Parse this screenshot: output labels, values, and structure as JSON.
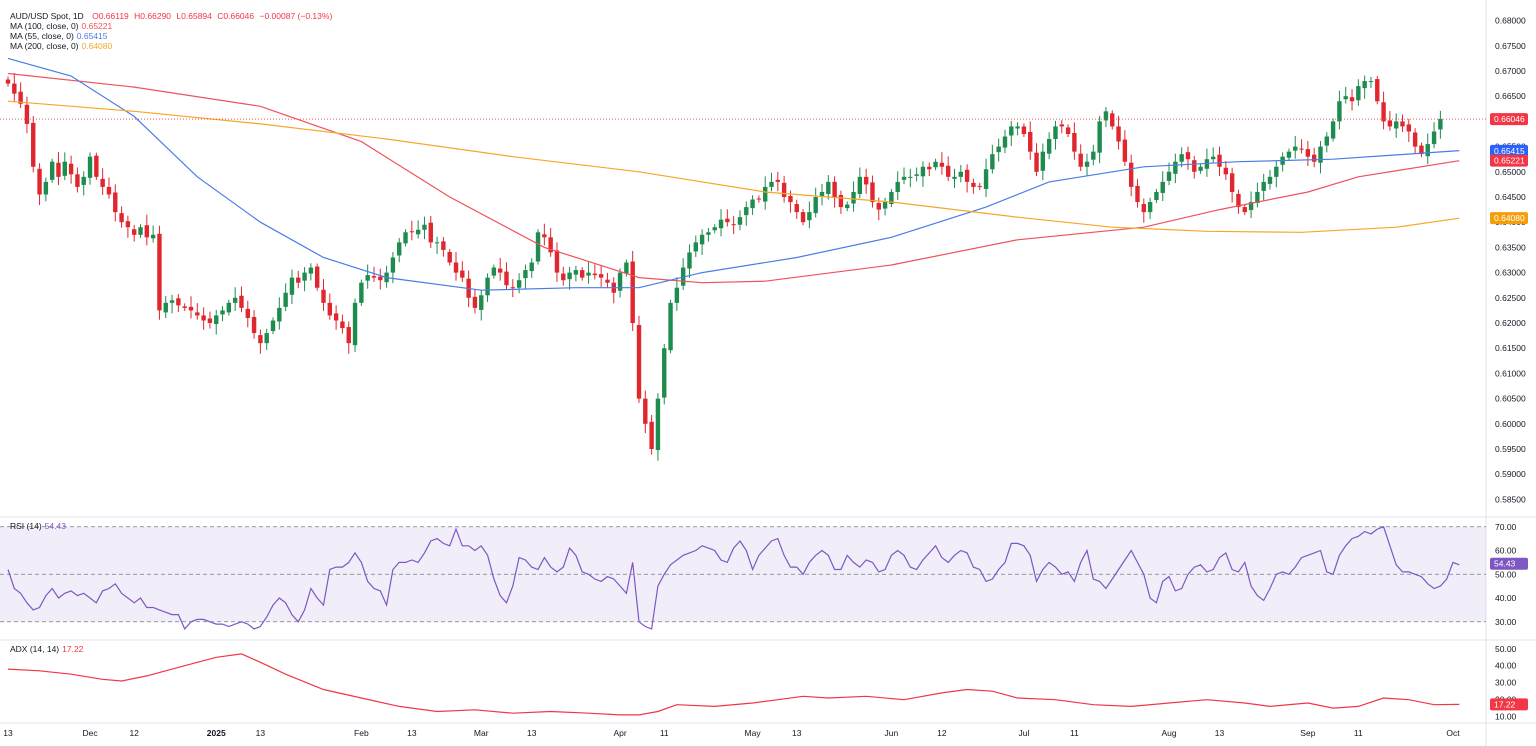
{
  "chart_data": {
    "type": "candlestick",
    "title": "AUD/USD Spot, 1D",
    "ohlc_label": {
      "open": "O0.66119",
      "high": "H0.66290",
      "low": "L0.65894",
      "close": "C0.66046",
      "change": "−0.00087 (−0.13%)"
    },
    "ylim": [
      0.5825,
      0.6825
    ],
    "y_ticks": [
      "0.68000",
      "0.67500",
      "0.67000",
      "0.66500",
      "0.66000",
      "0.65500",
      "0.65000",
      "0.64500",
      "0.64000",
      "0.63500",
      "0.63000",
      "0.62500",
      "0.62000",
      "0.61500",
      "0.61000",
      "0.60500",
      "0.60000",
      "0.59500",
      "0.59000",
      "0.58500"
    ],
    "x_ticks": [
      {
        "label": "13",
        "i": 0
      },
      {
        "label": "Dec",
        "i": 13
      },
      {
        "label": "12",
        "i": 20
      },
      {
        "label": "2025",
        "i": 33,
        "bold": true
      },
      {
        "label": "13",
        "i": 40
      },
      {
        "label": "Feb",
        "i": 56
      },
      {
        "label": "13",
        "i": 64
      },
      {
        "label": "Mar",
        "i": 75
      },
      {
        "label": "13",
        "i": 83
      },
      {
        "label": "Apr",
        "i": 97
      },
      {
        "label": "11",
        "i": 104
      },
      {
        "label": "May",
        "i": 118
      },
      {
        "label": "13",
        "i": 125
      },
      {
        "label": "Jun",
        "i": 140
      },
      {
        "label": "12",
        "i": 148
      },
      {
        "label": "Jul",
        "i": 161
      },
      {
        "label": "11",
        "i": 169
      },
      {
        "label": "Aug",
        "i": 184
      },
      {
        "label": "13",
        "i": 192
      },
      {
        "label": "Sep",
        "i": 206
      },
      {
        "label": "11",
        "i": 214
      },
      {
        "label": "Oct",
        "i": 229
      }
    ],
    "close_path": [
      0.6675,
      0.6655,
      0.6635,
      0.6595,
      0.651,
      0.6455,
      0.648,
      0.652,
      0.649,
      0.652,
      0.6495,
      0.647,
      0.649,
      0.653,
      0.649,
      0.647,
      0.6455,
      0.642,
      0.64,
      0.639,
      0.6375,
      0.639,
      0.637,
      0.6375,
      0.6225,
      0.624,
      0.6245,
      0.6235,
      0.623,
      0.6225,
      0.6215,
      0.6205,
      0.62,
      0.6215,
      0.6225,
      0.624,
      0.625,
      0.623,
      0.621,
      0.618,
      0.616,
      0.618,
      0.6205,
      0.623,
      0.626,
      0.629,
      0.628,
      0.63,
      0.631,
      0.627,
      0.624,
      0.6215,
      0.6205,
      0.619,
      0.616,
      0.624,
      0.628,
      0.6295,
      0.629,
      0.6285,
      0.63,
      0.633,
      0.636,
      0.638,
      0.638,
      0.6385,
      0.6395,
      0.636,
      0.636,
      0.6345,
      0.632,
      0.63,
      0.629,
      0.625,
      0.623,
      0.6255,
      0.629,
      0.631,
      0.63,
      0.6275,
      0.627,
      0.6285,
      0.6305,
      0.632,
      0.638,
      0.637,
      0.634,
      0.63,
      0.6285,
      0.63,
      0.6305,
      0.629,
      0.63,
      0.6295,
      0.629,
      0.628,
      0.626,
      0.63,
      0.632,
      0.62,
      0.605,
      0.6,
      0.595,
      0.605,
      0.615,
      0.624,
      0.627,
      0.631,
      0.634,
      0.636,
      0.6375,
      0.638,
      0.639,
      0.6405,
      0.64,
      0.6395,
      0.641,
      0.643,
      0.6445,
      0.6445,
      0.647,
      0.648,
      0.648,
      0.645,
      0.644,
      0.642,
      0.64,
      0.642,
      0.645,
      0.646,
      0.648,
      0.645,
      0.643,
      0.6435,
      0.646,
      0.649,
      0.6475,
      0.644,
      0.6425,
      0.644,
      0.646,
      0.648,
      0.649,
      0.649,
      0.6495,
      0.651,
      0.6505,
      0.652,
      0.651,
      0.649,
      0.649,
      0.65,
      0.648,
      0.647,
      0.647,
      0.6505,
      0.6535,
      0.655,
      0.657,
      0.659,
      0.659,
      0.6575,
      0.654,
      0.65,
      0.654,
      0.6565,
      0.659,
      0.659,
      0.6575,
      0.654,
      0.651,
      0.652,
      0.654,
      0.66,
      0.662,
      0.659,
      0.656,
      0.652,
      0.647,
      0.644,
      0.642,
      0.644,
      0.646,
      0.648,
      0.65,
      0.652,
      0.6535,
      0.6525,
      0.65,
      0.651,
      0.6525,
      0.653,
      0.651,
      0.6495,
      0.646,
      0.643,
      0.642,
      0.644,
      0.646,
      0.648,
      0.649,
      0.651,
      0.653,
      0.654,
      0.655,
      0.6545,
      0.653,
      0.652,
      0.655,
      0.657,
      0.66,
      0.664,
      0.665,
      0.664,
      0.667,
      0.668,
      0.668,
      0.664,
      0.66,
      0.659,
      0.66,
      0.659,
      0.658,
      0.655,
      0.6535,
      0.6555,
      0.658,
      0.6605
    ],
    "ma_series": [
      {
        "name": "MA (100, close, 0)",
        "value": "0.65221",
        "color": "#F0525B",
        "path": [
          [
            0,
            0.6695
          ],
          [
            20,
            0.6668
          ],
          [
            40,
            0.663
          ],
          [
            56,
            0.656
          ],
          [
            70,
            0.645
          ],
          [
            85,
            0.635
          ],
          [
            100,
            0.629
          ],
          [
            110,
            0.628
          ],
          [
            120,
            0.6283
          ],
          [
            140,
            0.6315
          ],
          [
            160,
            0.6365
          ],
          [
            180,
            0.639
          ],
          [
            192,
            0.6425
          ],
          [
            206,
            0.646
          ],
          [
            214,
            0.649
          ],
          [
            230,
            0.6522
          ]
        ]
      },
      {
        "name": "MA (55, close, 0)",
        "value": "0.65415",
        "color": "#4A7CE8",
        "path": [
          [
            0,
            0.6725
          ],
          [
            10,
            0.669
          ],
          [
            20,
            0.661
          ],
          [
            30,
            0.649
          ],
          [
            40,
            0.64
          ],
          [
            50,
            0.633
          ],
          [
            60,
            0.629
          ],
          [
            75,
            0.6265
          ],
          [
            90,
            0.627
          ],
          [
            100,
            0.627
          ],
          [
            110,
            0.63
          ],
          [
            125,
            0.633
          ],
          [
            140,
            0.637
          ],
          [
            155,
            0.643
          ],
          [
            165,
            0.648
          ],
          [
            180,
            0.651
          ],
          [
            195,
            0.652
          ],
          [
            210,
            0.6525
          ],
          [
            230,
            0.6542
          ]
        ]
      },
      {
        "name": "MA (200, close, 0)",
        "value": "0.64080",
        "color": "#F6A72A",
        "path": [
          [
            0,
            0.664
          ],
          [
            20,
            0.662
          ],
          [
            40,
            0.6595
          ],
          [
            60,
            0.6565
          ],
          [
            80,
            0.653
          ],
          [
            100,
            0.65
          ],
          [
            120,
            0.646
          ],
          [
            140,
            0.644
          ],
          [
            160,
            0.641
          ],
          [
            175,
            0.639
          ],
          [
            190,
            0.6382
          ],
          [
            205,
            0.638
          ],
          [
            220,
            0.639
          ],
          [
            230,
            0.6408
          ]
        ]
      }
    ],
    "last_price": "0.66046",
    "rsi": {
      "label": "RSI (14)",
      "value": "54.43",
      "color": "#7E57C2",
      "ylim": [
        24,
        72
      ],
      "bands": [
        30,
        70
      ],
      "mid": 50,
      "y_ticks": [
        "70.00",
        "60.00",
        "50.00",
        "40.00",
        "30.00"
      ],
      "path": [
        52,
        44,
        42,
        38,
        35,
        36,
        41,
        44,
        40,
        42,
        43,
        41,
        42,
        40,
        38,
        43,
        44,
        46,
        42,
        40,
        38,
        40,
        36,
        36,
        35,
        34,
        33,
        33,
        27,
        30,
        31,
        31,
        30,
        29,
        29,
        28,
        29,
        30,
        29,
        27,
        28,
        32,
        37,
        40,
        38,
        33,
        30,
        35,
        44,
        40,
        37,
        52,
        53,
        53,
        55,
        59,
        55,
        47,
        44,
        43,
        37,
        52,
        55,
        55,
        56,
        55,
        59,
        64,
        65,
        63,
        62,
        69,
        62,
        62,
        60,
        62,
        58,
        48,
        41,
        38,
        45,
        57,
        56,
        53,
        52,
        57,
        53,
        51,
        53,
        61,
        58,
        51,
        50,
        48,
        47,
        49,
        48,
        45,
        42,
        55,
        30,
        28,
        27,
        45,
        50,
        54,
        56,
        58,
        59,
        60,
        62,
        61,
        60,
        56,
        55,
        61,
        64,
        60,
        52,
        58,
        61,
        64,
        65,
        58,
        53,
        53,
        50,
        55,
        58,
        60,
        58,
        52,
        52,
        58,
        55,
        53,
        56,
        55,
        51,
        52,
        58,
        60,
        58,
        53,
        52,
        56,
        59,
        62,
        57,
        55,
        58,
        60,
        59,
        53,
        52,
        47,
        48,
        52,
        55,
        63,
        63,
        62,
        58,
        47,
        52,
        55,
        53,
        50,
        51,
        47,
        55,
        60,
        48,
        47,
        44,
        48,
        52,
        56,
        60,
        55,
        50,
        40,
        38,
        47,
        49,
        43,
        44,
        50,
        53,
        54,
        51,
        52,
        57,
        59,
        52,
        51,
        55,
        45,
        41,
        39,
        44,
        50,
        51,
        50,
        53,
        57,
        58,
        59,
        60,
        51,
        50,
        58,
        62,
        65,
        66,
        68,
        67,
        69,
        70,
        62,
        54,
        51,
        51,
        50,
        49,
        46,
        44,
        45,
        48,
        55,
        54
      ]
    },
    "adx": {
      "label": "ADX (14, 14)",
      "value": "17.22",
      "color": "#F23645",
      "ylim": [
        8,
        54
      ],
      "y_ticks": [
        "50.00",
        "40.00",
        "30.00",
        "20.00",
        "10.00"
      ],
      "path": [
        [
          0,
          38
        ],
        [
          5,
          37
        ],
        [
          10,
          35
        ],
        [
          15,
          32
        ],
        [
          18,
          31
        ],
        [
          22,
          34
        ],
        [
          28,
          40
        ],
        [
          33,
          45
        ],
        [
          37,
          47
        ],
        [
          40,
          42
        ],
        [
          44,
          35
        ],
        [
          50,
          26
        ],
        [
          56,
          21
        ],
        [
          62,
          16
        ],
        [
          68,
          13
        ],
        [
          74,
          14
        ],
        [
          80,
          12
        ],
        [
          86,
          13
        ],
        [
          92,
          12
        ],
        [
          97,
          11
        ],
        [
          100,
          11
        ],
        [
          103,
          13
        ],
        [
          106,
          17
        ],
        [
          112,
          16
        ],
        [
          118,
          18
        ],
        [
          122,
          20
        ],
        [
          126,
          22
        ],
        [
          130,
          21
        ],
        [
          136,
          22
        ],
        [
          142,
          20
        ],
        [
          148,
          24
        ],
        [
          152,
          26
        ],
        [
          156,
          25
        ],
        [
          160,
          21
        ],
        [
          166,
          20
        ],
        [
          172,
          17
        ],
        [
          178,
          16
        ],
        [
          184,
          18
        ],
        [
          190,
          20
        ],
        [
          196,
          18
        ],
        [
          200,
          16
        ],
        [
          206,
          18
        ],
        [
          210,
          15
        ],
        [
          214,
          16
        ],
        [
          218,
          21
        ],
        [
          222,
          20
        ],
        [
          226,
          17
        ],
        [
          230,
          17.2
        ]
      ]
    }
  }
}
